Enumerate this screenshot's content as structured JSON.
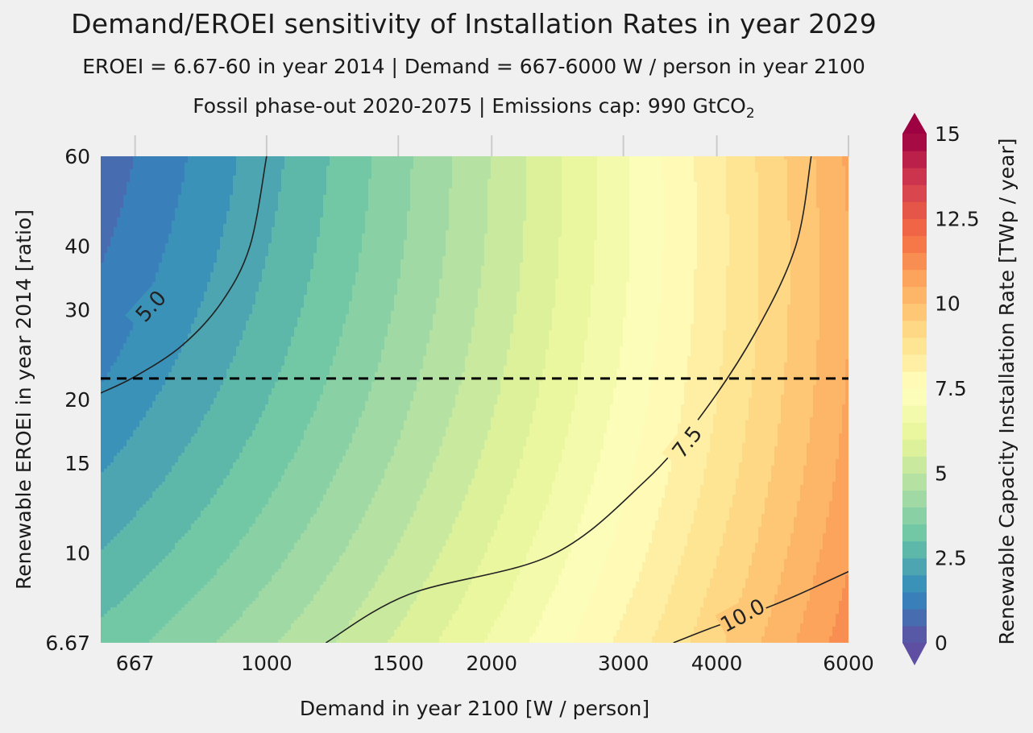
{
  "chart": {
    "title": "Demand/EROEI sensitivity of Installation Rates in year 2029",
    "subtitle_line1": "EROEI = 6.67-60 in year 2014   |   Demand = 667-6000 W / person in year 2100",
    "subtitle_line2_prefix": "Fossil phase-out 2020-2075  |  Emissions cap: 990 GtCO",
    "subtitle_line2_sub": "2"
  },
  "chart_data": {
    "type": "heatmap",
    "subtype": "filled-contour",
    "x": {
      "label": "Demand in year 2100 [W / person]",
      "scale": "log",
      "range": [
        600,
        6000
      ],
      "ticks": [
        667,
        1000,
        1500,
        2000,
        3000,
        4000,
        6000
      ],
      "tick_labels": [
        "667",
        "1000",
        "1500",
        "2000",
        "3000",
        "4000",
        "6000"
      ]
    },
    "y": {
      "label": "Renewable EROEI in year 2014 [ratio]",
      "scale": "log",
      "range": [
        6.67,
        60
      ],
      "ticks": [
        6.67,
        10,
        15,
        20,
        30,
        40,
        60
      ],
      "tick_labels": [
        "6.67",
        "10",
        "15",
        "20",
        "30",
        "40",
        "60"
      ]
    },
    "colorbar": {
      "label": "Renewable Capacity Installation Rate [TWp / year]",
      "range": [
        0,
        15
      ],
      "levels_step": 0.5,
      "extend": "both",
      "colormap": "Spectral_r",
      "ticks": [
        0,
        2.5,
        5,
        7.5,
        10,
        12.5,
        15
      ],
      "tick_labels": [
        "0",
        "2.5",
        "5",
        "7.5",
        "10",
        "12.5",
        "15"
      ]
    },
    "contour_lines": [
      {
        "level": 5.0,
        "label": "5.0",
        "points": [
          [
            600,
            20.6
          ],
          [
            667,
            22.2
          ],
          [
            770,
            25.5
          ],
          [
            870,
            31
          ],
          [
            950,
            40
          ],
          [
            1000,
            60
          ]
        ]
      },
      {
        "level": 7.5,
        "label": "7.5",
        "points": [
          [
            1200,
            6.67
          ],
          [
            1550,
            8.3
          ],
          [
            2400,
            9.9
          ],
          [
            3200,
            13.8
          ],
          [
            3800,
            18.5
          ],
          [
            4500,
            27
          ],
          [
            5100,
            40
          ],
          [
            5350,
            60
          ]
        ]
      },
      {
        "level": 10.0,
        "label": "10.0",
        "points": [
          [
            3500,
            6.67
          ],
          [
            3900,
            7.1
          ],
          [
            4600,
            7.75
          ],
          [
            5150,
            8.3
          ],
          [
            6000,
            9.2
          ]
        ]
      }
    ],
    "reference_line": {
      "y": 22.0,
      "style": "dashed",
      "color": "#000000"
    },
    "field_samples": [
      {
        "x": 667,
        "y": 60,
        "value": 4.0
      },
      {
        "x": 667,
        "y": 6.67,
        "value": 6.0
      },
      {
        "x": 6000,
        "y": 60,
        "value": 7.5
      },
      {
        "x": 6000,
        "y": 6.67,
        "value": 11.5
      },
      {
        "x": 2000,
        "y": 20,
        "value": 6.5
      }
    ]
  }
}
